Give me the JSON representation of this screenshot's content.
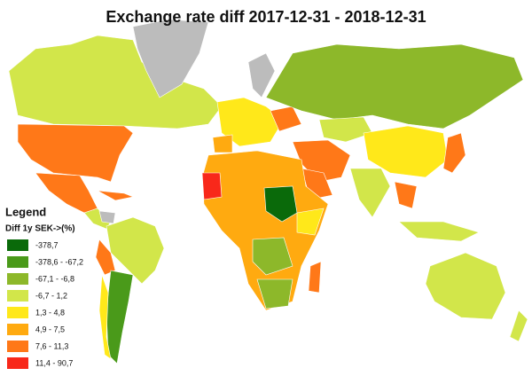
{
  "header": {
    "title": "Exchange rate diff 2017-12-31 - 2018-12-31"
  },
  "legend": {
    "title": "Legend",
    "subtitle": "Diff 1y SEK->(%)",
    "items": [
      {
        "label": "-378,7",
        "color": "#0a6a0a"
      },
      {
        "label": "-378,6 - -67,2",
        "color": "#4a9a1a"
      },
      {
        "label": "-67,1 - -6,8",
        "color": "#8db82a"
      },
      {
        "label": "-6,7 - 1,2",
        "color": "#d2e64a"
      },
      {
        "label": "1,3 - 4,8",
        "color": "#ffe81a"
      },
      {
        "label": "4,9 - 7,5",
        "color": "#ffaa10"
      },
      {
        "label": "7,6 - 11,3",
        "color": "#ff7818"
      },
      {
        "label": "11,4 - 90,7",
        "color": "#f8281a"
      }
    ]
  }
}
